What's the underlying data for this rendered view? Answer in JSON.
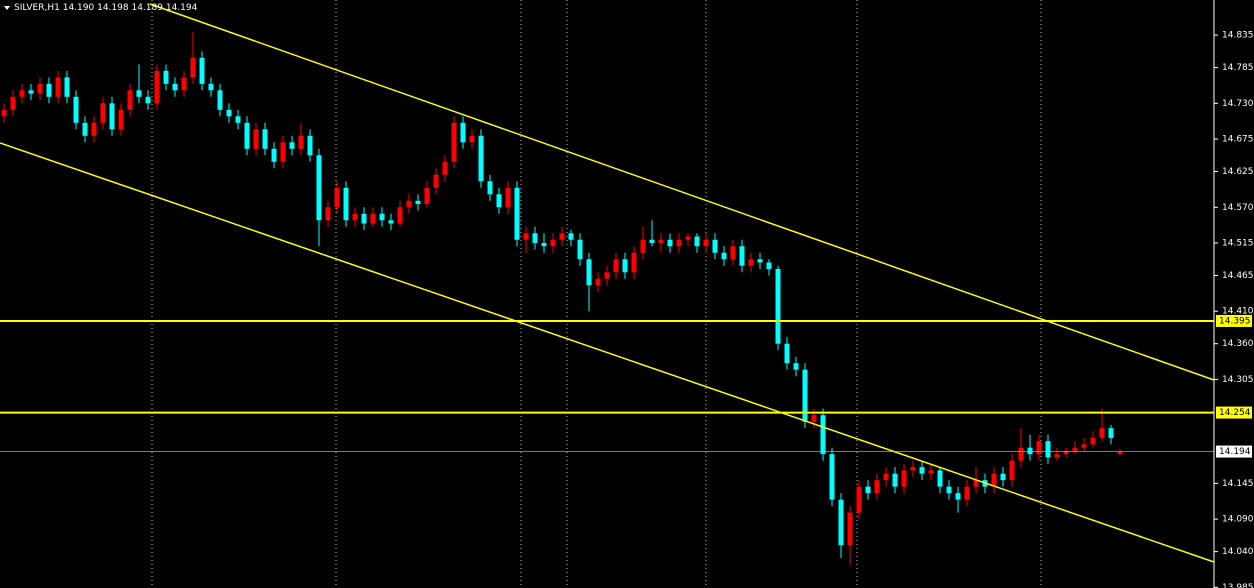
{
  "chart_data": {
    "type": "candlestick",
    "title": "SILVER,H1",
    "last_value_labels": [
      "14.190",
      "14.198",
      "14.189",
      "14.194"
    ],
    "up_color": "#ff0000",
    "down_color": "#00ffff",
    "ylim": [
      13.984,
      14.889
    ],
    "yticks": [
      14.835,
      14.785,
      {
        "value": 14.73,
        "label": "14.730"
      },
      14.675,
      14.625,
      {
        "value": 14.57,
        "label": "14.570"
      },
      14.515,
      14.465,
      {
        "value": 14.41,
        "label": "14.410"
      },
      {
        "value": 14.36,
        "label": "14.360"
      },
      14.305,
      14.145,
      {
        "value": 14.09,
        "label": "14.090"
      },
      {
        "value": 14.04,
        "label": "14.040"
      },
      13.985
    ],
    "levels": [
      {
        "value": 14.395,
        "label": "14.395",
        "color": "#ffff00"
      },
      {
        "value": 14.254,
        "label": "14.254",
        "color": "#ffff00"
      }
    ],
    "current_price": {
      "value": 14.194,
      "label": "14.194",
      "color": "#c0c0c0"
    },
    "candles": [
      [
        14.71,
        14.73,
        14.7,
        14.72
      ],
      [
        14.72,
        14.75,
        14.71,
        14.74
      ],
      [
        14.74,
        14.76,
        14.73,
        14.75
      ],
      [
        14.75,
        14.76,
        14.735,
        14.745
      ],
      [
        14.745,
        14.77,
        14.735,
        14.76
      ],
      [
        14.76,
        14.77,
        14.73,
        14.74
      ],
      [
        14.74,
        14.78,
        14.73,
        14.77
      ],
      [
        14.77,
        14.78,
        14.73,
        14.74
      ],
      [
        14.74,
        14.75,
        14.69,
        14.7
      ],
      [
        14.7,
        14.71,
        14.67,
        14.68
      ],
      [
        14.68,
        14.71,
        14.67,
        14.7
      ],
      [
        14.7,
        14.74,
        14.69,
        14.73
      ],
      [
        14.73,
        14.74,
        14.68,
        14.69
      ],
      [
        14.69,
        14.73,
        14.68,
        14.72
      ],
      [
        14.72,
        14.76,
        14.71,
        14.75
      ],
      [
        14.75,
        14.79,
        14.73,
        14.74
      ],
      [
        14.74,
        14.75,
        14.72,
        14.73
      ],
      [
        14.73,
        14.79,
        14.72,
        14.78
      ],
      [
        14.78,
        14.79,
        14.75,
        14.76
      ],
      [
        14.76,
        14.77,
        14.74,
        14.75
      ],
      [
        14.75,
        14.78,
        14.74,
        14.77
      ],
      [
        14.77,
        14.84,
        14.76,
        14.8
      ],
      [
        14.8,
        14.81,
        14.75,
        14.76
      ],
      [
        14.76,
        14.77,
        14.74,
        14.75
      ],
      [
        14.75,
        14.76,
        14.71,
        14.72
      ],
      [
        14.72,
        14.73,
        14.7,
        14.71
      ],
      [
        14.71,
        14.72,
        14.69,
        14.7
      ],
      [
        14.7,
        14.71,
        14.65,
        14.66
      ],
      [
        14.66,
        14.7,
        14.65,
        14.69
      ],
      [
        14.69,
        14.7,
        14.65,
        14.66
      ],
      [
        14.66,
        14.67,
        14.63,
        14.64
      ],
      [
        14.64,
        14.68,
        14.63,
        14.67
      ],
      [
        14.67,
        14.68,
        14.65,
        14.66
      ],
      [
        14.66,
        14.7,
        14.65,
        14.68
      ],
      [
        14.68,
        14.69,
        14.64,
        14.65
      ],
      [
        14.65,
        14.66,
        14.51,
        14.55
      ],
      [
        14.55,
        14.58,
        14.54,
        14.57
      ],
      [
        14.57,
        14.61,
        14.56,
        14.6
      ],
      [
        14.6,
        14.61,
        14.54,
        14.55
      ],
      [
        14.55,
        14.57,
        14.54,
        14.56
      ],
      [
        14.56,
        14.57,
        14.535,
        14.545
      ],
      [
        14.545,
        14.57,
        14.54,
        14.56
      ],
      [
        14.56,
        14.57,
        14.54,
        14.55
      ],
      [
        14.55,
        14.56,
        14.535,
        14.545
      ],
      [
        14.545,
        14.58,
        14.54,
        14.57
      ],
      [
        14.57,
        14.59,
        14.56,
        14.58
      ],
      [
        14.58,
        14.59,
        14.565,
        14.575
      ],
      [
        14.575,
        14.61,
        14.57,
        14.6
      ],
      [
        14.6,
        14.63,
        14.59,
        14.62
      ],
      [
        14.62,
        14.65,
        14.61,
        14.64
      ],
      [
        14.64,
        14.71,
        14.63,
        14.7
      ],
      [
        14.7,
        14.71,
        14.66,
        14.67
      ],
      [
        14.67,
        14.69,
        14.66,
        14.68
      ],
      [
        14.68,
        14.69,
        14.6,
        14.61
      ],
      [
        14.61,
        14.62,
        14.58,
        14.59
      ],
      [
        14.59,
        14.6,
        14.56,
        14.57
      ],
      [
        14.57,
        14.61,
        14.56,
        14.6
      ],
      [
        14.6,
        14.61,
        14.51,
        14.52
      ],
      [
        14.52,
        14.54,
        14.5,
        14.53
      ],
      [
        14.53,
        14.54,
        14.505,
        14.515
      ],
      [
        14.515,
        14.53,
        14.5,
        14.51
      ],
      [
        14.51,
        14.53,
        14.5,
        14.52
      ],
      [
        14.52,
        14.54,
        14.51,
        14.53
      ],
      [
        14.53,
        14.535,
        14.51,
        14.52
      ],
      [
        14.52,
        14.53,
        14.48,
        14.49
      ],
      [
        14.49,
        14.5,
        14.41,
        14.45
      ],
      [
        14.45,
        14.47,
        14.44,
        14.46
      ],
      [
        14.46,
        14.48,
        14.45,
        14.47
      ],
      [
        14.47,
        14.5,
        14.46,
        14.49
      ],
      [
        14.49,
        14.5,
        14.46,
        14.47
      ],
      [
        14.47,
        14.51,
        14.46,
        14.5
      ],
      [
        14.5,
        14.54,
        14.49,
        14.52
      ],
      [
        14.52,
        14.55,
        14.51,
        14.515
      ],
      [
        14.515,
        14.53,
        14.5,
        14.52
      ],
      [
        14.52,
        14.53,
        14.5,
        14.51
      ],
      [
        14.51,
        14.53,
        14.5,
        14.52
      ],
      [
        14.52,
        14.53,
        14.51,
        14.525
      ],
      [
        14.525,
        14.53,
        14.5,
        14.51
      ],
      [
        14.51,
        14.53,
        14.5,
        14.52
      ],
      [
        14.52,
        14.53,
        14.49,
        14.5
      ],
      [
        14.5,
        14.51,
        14.48,
        14.49
      ],
      [
        14.49,
        14.52,
        14.48,
        14.51
      ],
      [
        14.51,
        14.52,
        14.47,
        14.48
      ],
      [
        14.48,
        14.5,
        14.47,
        14.49
      ],
      [
        14.49,
        14.5,
        14.475,
        14.485
      ],
      [
        14.485,
        14.49,
        14.465,
        14.475
      ],
      [
        14.475,
        14.48,
        14.35,
        14.36
      ],
      [
        14.36,
        14.37,
        14.32,
        14.33
      ],
      [
        14.33,
        14.34,
        14.31,
        14.32
      ],
      [
        14.32,
        14.33,
        14.23,
        14.24
      ],
      [
        14.24,
        14.26,
        14.23,
        14.25
      ],
      [
        14.25,
        14.26,
        14.18,
        14.19
      ],
      [
        14.19,
        14.2,
        14.11,
        14.12
      ],
      [
        14.12,
        14.13,
        14.03,
        14.05
      ],
      [
        14.05,
        14.11,
        14.02,
        14.1
      ],
      [
        14.1,
        14.15,
        14.09,
        14.14
      ],
      [
        14.14,
        14.15,
        14.12,
        14.13
      ],
      [
        14.13,
        14.16,
        14.12,
        14.15
      ],
      [
        14.15,
        14.17,
        14.14,
        14.16
      ],
      [
        14.16,
        14.17,
        14.13,
        14.14
      ],
      [
        14.14,
        14.175,
        14.13,
        14.165
      ],
      [
        14.165,
        14.18,
        14.155,
        14.17
      ],
      [
        14.17,
        14.18,
        14.15,
        14.16
      ],
      [
        14.16,
        14.175,
        14.15,
        14.165
      ],
      [
        14.165,
        14.17,
        14.13,
        14.14
      ],
      [
        14.14,
        14.15,
        14.12,
        14.13
      ],
      [
        14.13,
        14.14,
        14.1,
        14.12
      ],
      [
        14.12,
        14.15,
        14.11,
        14.14
      ],
      [
        14.14,
        14.17,
        14.13,
        14.15
      ],
      [
        14.15,
        14.16,
        14.13,
        14.14
      ],
      [
        14.14,
        14.17,
        14.13,
        14.16
      ],
      [
        14.16,
        14.17,
        14.14,
        14.15
      ],
      [
        14.15,
        14.19,
        14.14,
        14.18
      ],
      [
        14.18,
        14.23,
        14.17,
        14.2
      ],
      [
        14.2,
        14.22,
        14.18,
        14.19
      ],
      [
        14.19,
        14.22,
        14.18,
        14.21
      ],
      [
        14.21,
        14.22,
        14.175,
        14.185
      ],
      [
        14.185,
        14.2,
        14.18,
        14.19
      ],
      [
        14.19,
        14.2,
        14.185,
        14.195
      ],
      [
        14.195,
        14.21,
        14.19,
        14.2
      ],
      [
        14.2,
        14.215,
        14.195,
        14.205
      ],
      [
        14.205,
        14.225,
        14.2,
        14.215
      ],
      [
        14.215,
        14.26,
        14.21,
        14.23
      ],
      [
        14.23,
        14.235,
        14.205,
        14.215
      ],
      [
        14.19,
        14.198,
        14.189,
        14.194
      ]
    ]
  }
}
